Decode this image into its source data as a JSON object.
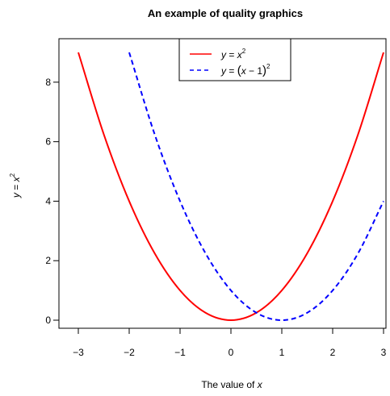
{
  "chart_data": {
    "type": "line",
    "title": "An example of quality graphics",
    "xlabel": "The value of x",
    "xlabel_parts": {
      "text": "The value of ",
      "var": "x"
    },
    "ylabel": "y = x^2",
    "ylabel_parts": {
      "lhs": "y",
      "rel": " = ",
      "base": "x",
      "exp": "2"
    },
    "xlim": [
      -3,
      3
    ],
    "ylim": [
      0,
      9
    ],
    "xticks": [
      -3,
      -2,
      -1,
      0,
      1,
      2,
      3
    ],
    "yticks": [
      0,
      2,
      4,
      6,
      8
    ],
    "xtick_labels": [
      "−3",
      "−2",
      "−1",
      "0",
      "1",
      "2",
      "3"
    ],
    "ytick_labels": [
      "0",
      "2",
      "4",
      "6",
      "8"
    ],
    "grid": false,
    "legend_position": "top",
    "series": [
      {
        "name": "y = x^2",
        "legend_parts": {
          "lhs": "y",
          "rel": " = ",
          "base": "x",
          "exp": "2"
        },
        "color": "#ff0000",
        "style": "solid",
        "x": [
          -3,
          -2.5,
          -2,
          -1.5,
          -1,
          -0.5,
          0,
          0.5,
          1,
          1.5,
          2,
          2.5,
          3
        ],
        "y": [
          9,
          6.25,
          4,
          2.25,
          1,
          0.25,
          0,
          0.25,
          1,
          2.25,
          4,
          6.25,
          9
        ]
      },
      {
        "name": "y = (x - 1)^2",
        "legend_parts": {
          "lhs": "y",
          "rel": " = ",
          "open": "(",
          "base": "x",
          "minus": " − 1",
          "close": ")",
          "exp": "2"
        },
        "color": "#0000ff",
        "style": "dashed",
        "x": [
          -2,
          -1.5,
          -1,
          -0.5,
          0,
          0.5,
          1,
          1.5,
          2,
          2.5,
          3
        ],
        "y": [
          9,
          6.25,
          4,
          2.25,
          1,
          0.25,
          0,
          0.25,
          1,
          2.25,
          4
        ]
      }
    ]
  }
}
